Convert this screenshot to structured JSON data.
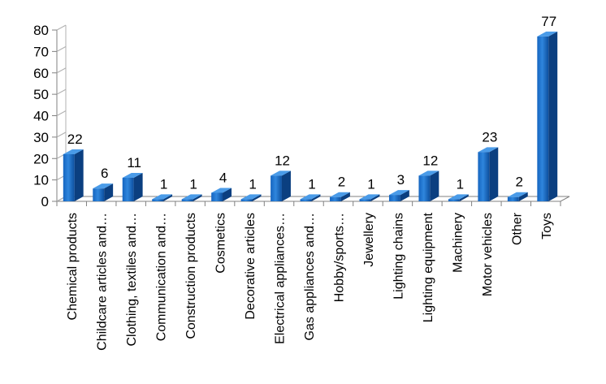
{
  "chart_data": {
    "type": "bar",
    "title": "",
    "xlabel": "",
    "ylabel": "",
    "ylim": [
      0,
      80
    ],
    "yticks": [
      0,
      10,
      20,
      30,
      40,
      50,
      60,
      70,
      80
    ],
    "grid": false,
    "legend": "none",
    "bar_color": "#1565c0",
    "categories": [
      "Chemical products",
      "Childcare articles and…",
      "Clothing, textiles and…",
      "Communication and…",
      "Construction products",
      "Cosmetics",
      "Decorative articles",
      "Electrical appliances…",
      "Gas appliances and…",
      "Hobby/sports…",
      "Jewellery",
      "Lighting chains",
      "Lighting equipment",
      "Machinery",
      "Motor vehicles",
      "Other",
      "Toys"
    ],
    "values": [
      22,
      6,
      11,
      1,
      1,
      4,
      1,
      12,
      1,
      2,
      1,
      3,
      12,
      1,
      23,
      2,
      77
    ]
  }
}
